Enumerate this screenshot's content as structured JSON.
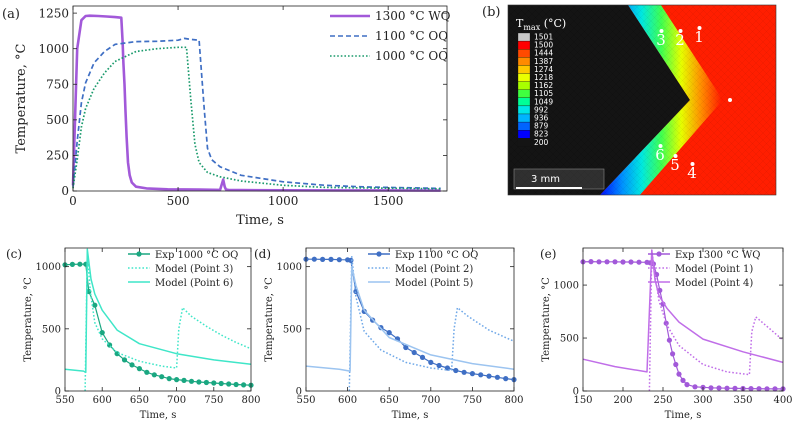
{
  "colors": {
    "purple": "#a259d9",
    "blue": "#3f6fc4",
    "green": "#1a9a6c",
    "teal": "#1aa781",
    "cyan": "#3fe6c8",
    "sky": "#6fa8e8",
    "lightblue": "#9cc4f0",
    "violet": "#c06ee8",
    "axis": "#222222"
  },
  "chart_data": [
    {
      "id": "a",
      "panel_label": "(a)",
      "type": "line",
      "xlabel": "Time, s",
      "ylabel": "Temperature, °C",
      "xlim": [
        0,
        1780
      ],
      "ylim": [
        0,
        1300
      ],
      "xticks": [
        0,
        500,
        1000,
        1500
      ],
      "yticks": [
        0,
        250,
        500,
        750,
        1000,
        1250
      ],
      "legend_position": "top-right",
      "series": [
        {
          "name": "1300 °C WQ",
          "color": "purple",
          "style": "solid",
          "x": [
            0,
            20,
            40,
            60,
            80,
            120,
            160,
            200,
            230,
            236,
            240,
            245,
            250,
            255,
            262,
            270,
            280,
            300,
            350,
            450,
            600,
            700,
            715,
            722,
            728,
            740,
            800,
            1000,
            1300,
            1750
          ],
          "y": [
            40,
            1000,
            1200,
            1230,
            1232,
            1230,
            1226,
            1222,
            1218,
            1050,
            900,
            750,
            560,
            380,
            200,
            110,
            60,
            30,
            18,
            12,
            10,
            8,
            80,
            30,
            10,
            8,
            6,
            5,
            4,
            3
          ]
        },
        {
          "name": "1100 °C OQ",
          "color": "blue",
          "style": "dashed",
          "x": [
            0,
            20,
            40,
            60,
            80,
            100,
            150,
            200,
            300,
            400,
            500,
            530,
            560,
            600,
            610,
            625,
            640,
            660,
            700,
            800,
            1000,
            1200,
            1400,
            1750
          ],
          "y": [
            30,
            350,
            620,
            760,
            830,
            900,
            980,
            1030,
            1050,
            1052,
            1060,
            1072,
            1065,
            1060,
            860,
            570,
            300,
            220,
            170,
            110,
            65,
            40,
            28,
            18
          ]
        },
        {
          "name": "1000 °C OQ",
          "color": "green",
          "style": "dotted",
          "x": [
            0,
            20,
            40,
            60,
            80,
            100,
            150,
            200,
            300,
            400,
            500,
            540,
            560,
            580,
            600,
            640,
            700,
            800,
            1000,
            1200,
            1750
          ],
          "y": [
            20,
            220,
            450,
            580,
            650,
            720,
            830,
            910,
            980,
            1000,
            1010,
            1010,
            650,
            330,
            200,
            130,
            100,
            70,
            40,
            25,
            15
          ]
        }
      ]
    },
    {
      "id": "c",
      "panel_label": "(c)",
      "type": "line",
      "xlabel": "Time, s",
      "ylabel": "Temperature, °C",
      "xlim": [
        550,
        800
      ],
      "ylim": [
        0,
        1150
      ],
      "xticks": [
        550,
        600,
        650,
        700,
        750,
        800
      ],
      "yticks": [
        0,
        500,
        1000
      ],
      "legend_position": "top-right",
      "series": [
        {
          "name": "Exp 1000 °C OQ",
          "color": "teal",
          "style": "solid-markers",
          "x": [
            550,
            560,
            570,
            578,
            582,
            590,
            600,
            610,
            620,
            630,
            640,
            650,
            660,
            670,
            680,
            690,
            700,
            710,
            720,
            730,
            740,
            750,
            760,
            770,
            780,
            790,
            800
          ],
          "y": [
            1015,
            1018,
            1020,
            1020,
            800,
            690,
            470,
            370,
            300,
            250,
            210,
            180,
            150,
            130,
            115,
            100,
            92,
            85,
            78,
            72,
            68,
            64,
            60,
            56,
            52,
            49,
            47
          ]
        },
        {
          "name": "Model (Point 3)",
          "color": "cyan",
          "style": "dotted",
          "x": [
            577,
            580,
            584,
            590,
            600,
            620,
            650,
            680,
            700,
            703,
            708,
            720,
            740,
            760,
            780,
            800
          ],
          "y": [
            0,
            1100,
            800,
            550,
            420,
            310,
            240,
            200,
            185,
            500,
            670,
            600,
            520,
            450,
            390,
            340
          ]
        },
        {
          "name": "Model (Point 6)",
          "color": "cyan",
          "style": "solid",
          "x": [
            550,
            575,
            578,
            580,
            585,
            590,
            600,
            620,
            650,
            700,
            750,
            800
          ],
          "y": [
            175,
            160,
            150,
            1140,
            900,
            780,
            650,
            490,
            380,
            300,
            250,
            215
          ]
        }
      ]
    },
    {
      "id": "d",
      "panel_label": "(d)",
      "type": "line",
      "xlabel": "Time, s",
      "ylabel": "Temperature, °C",
      "xlim": [
        550,
        800
      ],
      "ylim": [
        0,
        1150
      ],
      "xticks": [
        550,
        600,
        650,
        700,
        750,
        800
      ],
      "yticks": [
        0,
        500,
        1000
      ],
      "legend_position": "top-right",
      "series": [
        {
          "name": "Exp 1100 °C OQ",
          "color": "blue",
          "style": "solid-markers",
          "x": [
            550,
            560,
            570,
            580,
            590,
            600,
            604,
            610,
            620,
            630,
            640,
            650,
            660,
            670,
            680,
            690,
            700,
            710,
            720,
            730,
            740,
            750,
            760,
            770,
            780,
            790,
            800
          ],
          "y": [
            1060,
            1060,
            1058,
            1058,
            1056,
            1055,
            1050,
            800,
            640,
            570,
            510,
            470,
            420,
            350,
            310,
            270,
            230,
            205,
            185,
            165,
            150,
            140,
            130,
            120,
            110,
            100,
            92
          ]
        },
        {
          "name": "Model (Point 2)",
          "color": "sky",
          "style": "dotted",
          "x": [
            602,
            605,
            610,
            620,
            640,
            670,
            700,
            725,
            728,
            732,
            745,
            770,
            800
          ],
          "y": [
            0,
            1080,
            760,
            480,
            330,
            230,
            185,
            165,
            500,
            670,
            600,
            490,
            400
          ]
        },
        {
          "name": "Model (Point 5)",
          "color": "lightblue",
          "style": "solid",
          "x": [
            550,
            590,
            603,
            605,
            610,
            620,
            650,
            700,
            750,
            800
          ],
          "y": [
            200,
            175,
            160,
            1000,
            850,
            650,
            430,
            290,
            220,
            175
          ]
        }
      ]
    },
    {
      "id": "e",
      "panel_label": "(e)",
      "type": "line",
      "xlabel": "Time, s",
      "ylabel": "Temperature, °C",
      "xlim": [
        150,
        400
      ],
      "ylim": [
        0,
        1350
      ],
      "xticks": [
        150,
        200,
        250,
        300,
        350,
        400
      ],
      "yticks": [
        0,
        500,
        1000
      ],
      "legend_position": "top-right",
      "series": [
        {
          "name": "Exp 1300 °C WQ",
          "color": "purple",
          "style": "solid-markers",
          "x": [
            150,
            160,
            170,
            180,
            190,
            200,
            210,
            220,
            230,
            234,
            238,
            242,
            246,
            250,
            254,
            258,
            262,
            266,
            270,
            275,
            280,
            290,
            300,
            310,
            320,
            330,
            340,
            350,
            360,
            370,
            380,
            390,
            400
          ],
          "y": [
            1220,
            1222,
            1220,
            1220,
            1220,
            1218,
            1218,
            1216,
            1215,
            1210,
            1200,
            1100,
            950,
            820,
            640,
            480,
            350,
            250,
            160,
            100,
            60,
            40,
            35,
            30,
            28,
            26,
            25,
            24,
            23,
            22,
            21,
            20,
            20
          ]
        },
        {
          "name": "Model (Point 1)",
          "color": "violet",
          "style": "dotted",
          "x": [
            233,
            236,
            240,
            245,
            255,
            270,
            300,
            330,
            358,
            361,
            366,
            380,
            400
          ],
          "y": [
            0,
            1330,
            1100,
            850,
            620,
            430,
            250,
            180,
            155,
            560,
            700,
            610,
            480
          ]
        },
        {
          "name": "Model (Point 4)",
          "color": "violet",
          "style": "solid",
          "x": [
            150,
            190,
            230,
            236,
            240,
            245,
            255,
            270,
            300,
            350,
            400
          ],
          "y": [
            300,
            230,
            180,
            1330,
            1050,
            900,
            780,
            650,
            490,
            370,
            270
          ]
        }
      ]
    }
  ],
  "contour": {
    "panel_label": "(b)",
    "legend_title": "T",
    "legend_sub": "max",
    "legend_unit": " (°C)",
    "levels": [
      "1501",
      "1500",
      "1444",
      "1387",
      "1274",
      "1218",
      "1162",
      "1105",
      "1049",
      "992",
      "936",
      "879",
      "823",
      "200"
    ],
    "level_colors": [
      "#c8c8c8",
      "#ff0000",
      "#ff4a00",
      "#ff8a00",
      "#ffc800",
      "#eaff00",
      "#a8ff00",
      "#40ff40",
      "#00ff96",
      "#00e6e6",
      "#00b4ff",
      "#0064ff",
      "#0000ff",
      "#141414"
    ],
    "point_labels": [
      "3",
      "2",
      "1",
      "6",
      "5",
      "4"
    ],
    "scale_bar": "3 mm"
  }
}
